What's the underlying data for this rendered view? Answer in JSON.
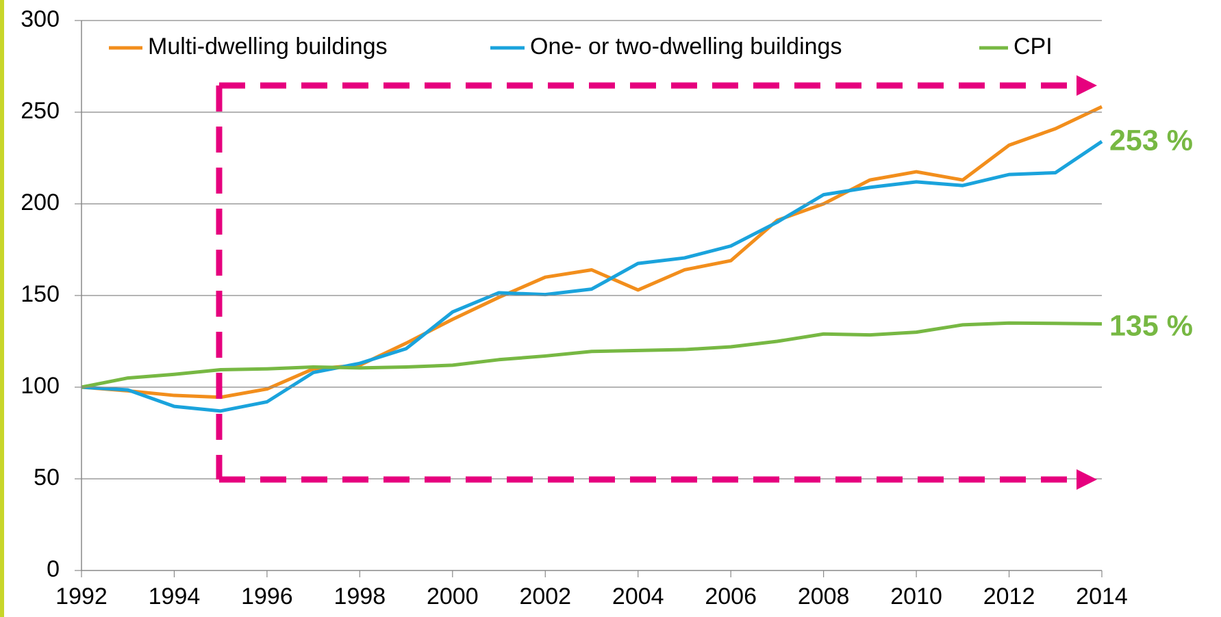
{
  "chart_data": {
    "type": "line",
    "x": [
      1992,
      1993,
      1994,
      1995,
      1996,
      1997,
      1998,
      1999,
      2000,
      2001,
      2002,
      2003,
      2004,
      2005,
      2006,
      2007,
      2008,
      2009,
      2010,
      2011,
      2012,
      2013,
      2014
    ],
    "series": [
      {
        "name": "Multi-dwelling buildings",
        "color": "#f28e1c",
        "values": [
          100,
          98,
          95.5,
          94.5,
          99,
          110,
          112,
          124,
          137,
          149,
          160,
          164,
          153,
          164,
          169,
          191,
          200,
          213,
          217.5,
          213,
          232,
          241,
          253
        ]
      },
      {
        "name": "One- or two-dwelling buildings",
        "color": "#1aa3dc",
        "values": [
          100,
          98.5,
          89.5,
          87,
          92,
          108,
          113,
          121,
          141,
          151.5,
          150.5,
          153.5,
          167.5,
          170.5,
          177,
          190,
          205,
          209,
          212,
          210,
          216,
          217,
          234
        ]
      },
      {
        "name": "CPI",
        "color": "#77b843",
        "values": [
          100,
          105,
          107,
          109.5,
          110,
          111,
          110.5,
          111,
          112,
          115,
          117,
          119.5,
          120,
          120.5,
          122,
          125,
          129,
          128.5,
          130,
          134,
          135,
          134.8,
          134.5
        ]
      }
    ],
    "xlim": [
      1992,
      2014
    ],
    "xticks": [
      1992,
      1994,
      1996,
      1998,
      2000,
      2002,
      2004,
      2006,
      2008,
      2010,
      2012,
      2014
    ],
    "ylim": [
      0,
      300
    ],
    "yticks": [
      0,
      50,
      100,
      150,
      200,
      250,
      300
    ],
    "grid": true,
    "annotations": [
      "253 %",
      "135 %"
    ]
  }
}
